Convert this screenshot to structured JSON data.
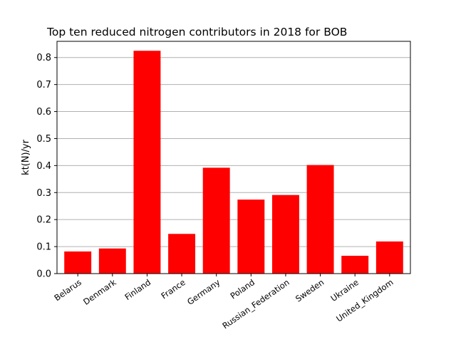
{
  "chart_data": {
    "type": "bar",
    "title": "Top ten reduced nitrogen contributors in 2018 for  BOB",
    "xlabel": "",
    "ylabel": "kt(N)/yr",
    "categories": [
      "Belarus",
      "Denmark",
      "Finland",
      "France",
      "Germany",
      "Poland",
      "Russian_Federation",
      "Sweden",
      "Ukraine",
      "United_Kingdom"
    ],
    "values": [
      0.082,
      0.093,
      0.825,
      0.147,
      0.392,
      0.274,
      0.291,
      0.402,
      0.066,
      0.119
    ],
    "ylim": [
      0,
      0.86
    ],
    "yticks": [
      "0.0",
      "0.1",
      "0.2",
      "0.3",
      "0.4",
      "0.5",
      "0.6",
      "0.7",
      "0.8"
    ],
    "grid": "horizontal",
    "bar_color": "#ff0000",
    "grid_color": "#b0b0b0"
  }
}
